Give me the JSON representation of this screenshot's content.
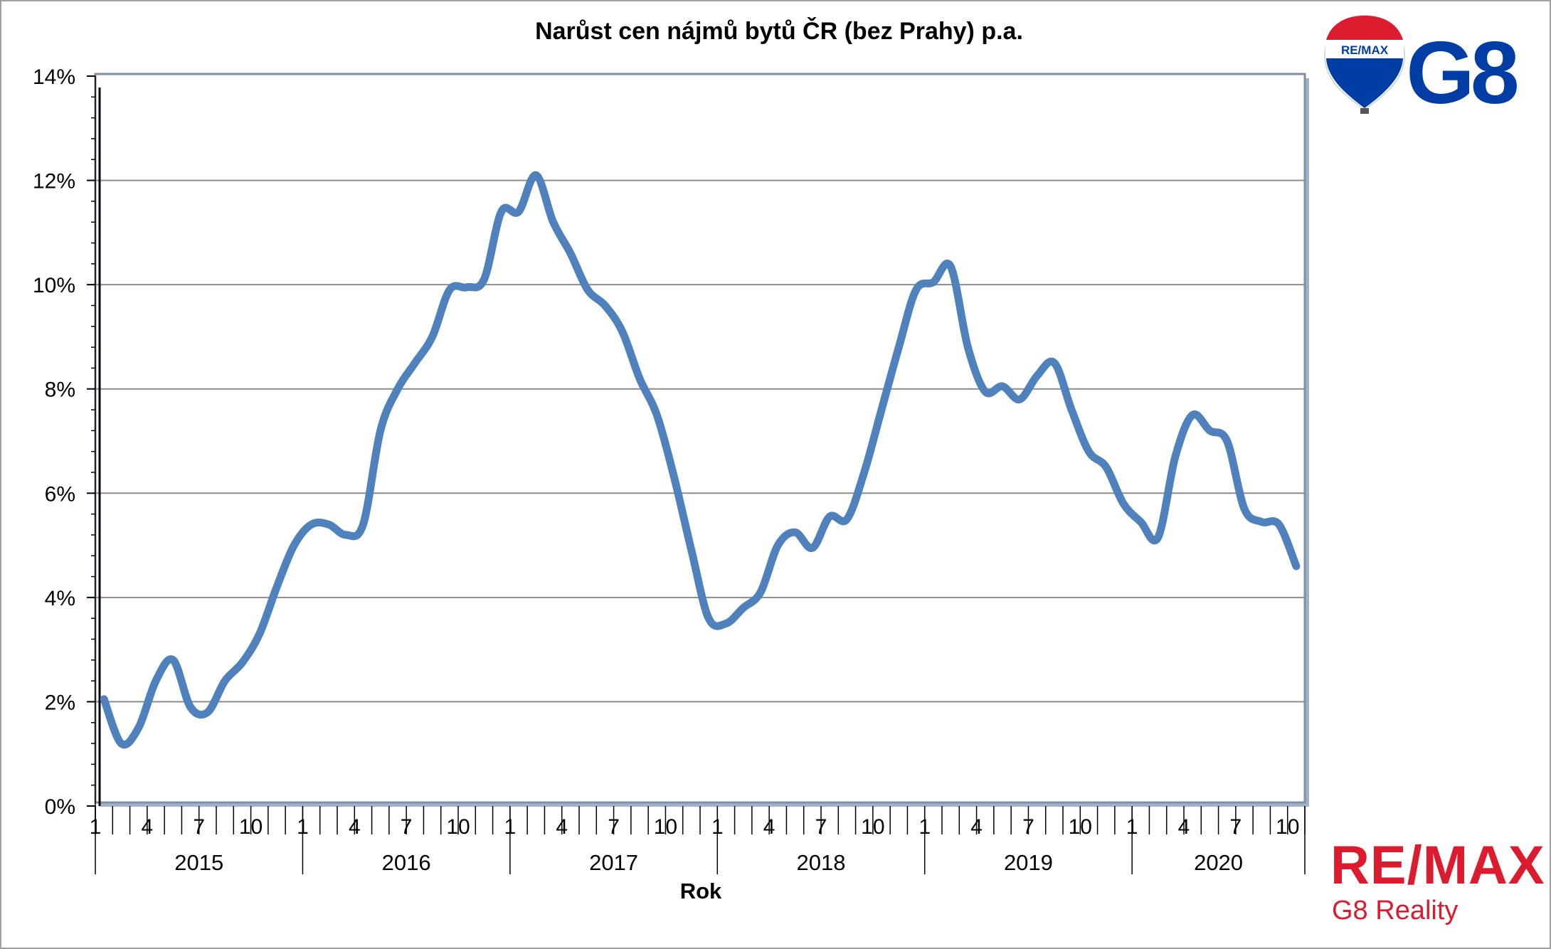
{
  "chart_data": {
    "type": "line",
    "title": "Narůst cen nájmů bytů ČR (bez Prahy) p.a.",
    "xlabel": "Rok",
    "ylabel": "",
    "ylim": [
      0,
      14
    ],
    "yticks": [
      "0%",
      "2%",
      "4%",
      "6%",
      "8%",
      "10%",
      "12%",
      "14%"
    ],
    "month_tick_labels": [
      "1",
      "4",
      "7",
      "10"
    ],
    "years": [
      "2015",
      "2016",
      "2017",
      "2018",
      "2019",
      "2020"
    ],
    "grid": true,
    "color": "#4f81bd",
    "series": [
      {
        "values": [
          2.05,
          1.2,
          1.5,
          2.4,
          2.8,
          1.9,
          1.8,
          2.4,
          2.75,
          3.3,
          4.2,
          5.0,
          5.4,
          5.4,
          5.2,
          5.4,
          7.2,
          8.0,
          8.5,
          9.0,
          9.9,
          9.95,
          10.1,
          11.4,
          11.4,
          12.1,
          11.2,
          10.6,
          9.9,
          9.6,
          9.1,
          8.2,
          7.5,
          6.3,
          4.9,
          3.6,
          3.5,
          3.8,
          4.1,
          5.0,
          5.25,
          4.95,
          5.55,
          5.5,
          6.4,
          7.6,
          8.8,
          9.9,
          10.05,
          10.35,
          8.8,
          7.95,
          8.05,
          7.8,
          8.25,
          8.5,
          7.6,
          6.8,
          6.5,
          5.8,
          5.45,
          5.15,
          6.7,
          7.5,
          7.2,
          7.0,
          5.7,
          5.45,
          5.4,
          4.6
        ]
      }
    ]
  },
  "logos": {
    "balloon_label": "RE/MAX",
    "g8_mark": "G8",
    "brand": "RE/MAX",
    "brand_sub": "G8 Reality",
    "colors": {
      "red": "#dc1c2e",
      "blue": "#003da5",
      "line": "#4f81bd"
    }
  }
}
